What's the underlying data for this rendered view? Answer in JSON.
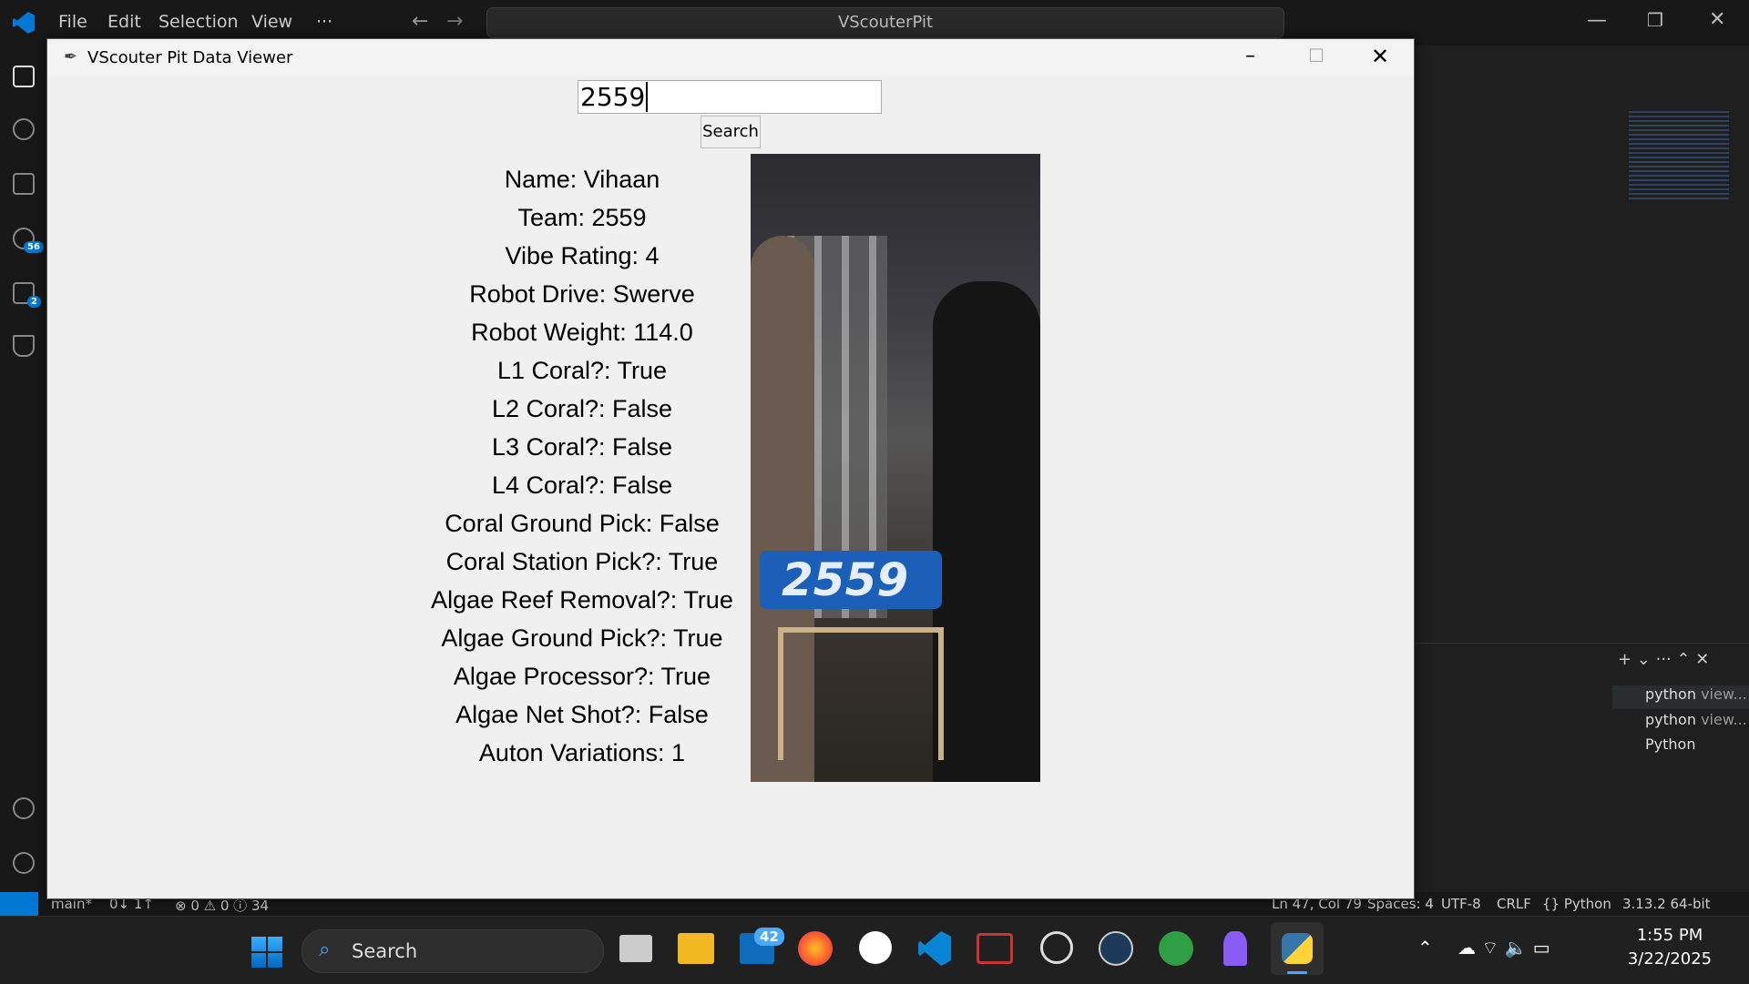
{
  "vscode": {
    "menu": [
      "File",
      "Edit",
      "Selection",
      "View",
      "···"
    ],
    "command_center": "VScouterPit",
    "source_control_badge": "56",
    "extensions_badge": "2",
    "terminal_tabs": [
      "python",
      "view...",
      "python",
      "view...",
      "Python"
    ],
    "status_bar": {
      "branch": "main*",
      "sync": "0↓ 1↑",
      "problems": "⊗ 0 ⚠ 0 ⓘ 34",
      "position": "Ln 47, Col 79",
      "spaces": "Spaces: 4",
      "encoding": "UTF-8",
      "eol": "CRLF",
      "language": "{} Python",
      "interpreter": "3.13.2 64-bit"
    }
  },
  "window": {
    "title": "VScouter Pit Data Viewer",
    "search_input": "2559",
    "search_button": "Search",
    "fields": [
      "Name: Vihaan",
      "Team: 2559",
      "Vibe Rating: 4",
      "Robot Drive: Swerve",
      "Robot Weight: 114.0",
      "L1 Coral?: True",
      "L2 Coral?: False",
      "L3 Coral?: False",
      "L4 Coral?: False",
      "Coral Ground Pick: False",
      "Coral Station Pick?: True",
      "Algae Reef Removal?: True",
      "Algae Ground Pick?: True",
      "Algae Processor?: True",
      "Algae Net Shot?: False",
      "Auton Variations: 1"
    ],
    "photo_text": "2559"
  },
  "taskbar": {
    "search": "Search",
    "mail_badge": "42",
    "time": "1:55 PM",
    "date": "3/22/2025"
  }
}
